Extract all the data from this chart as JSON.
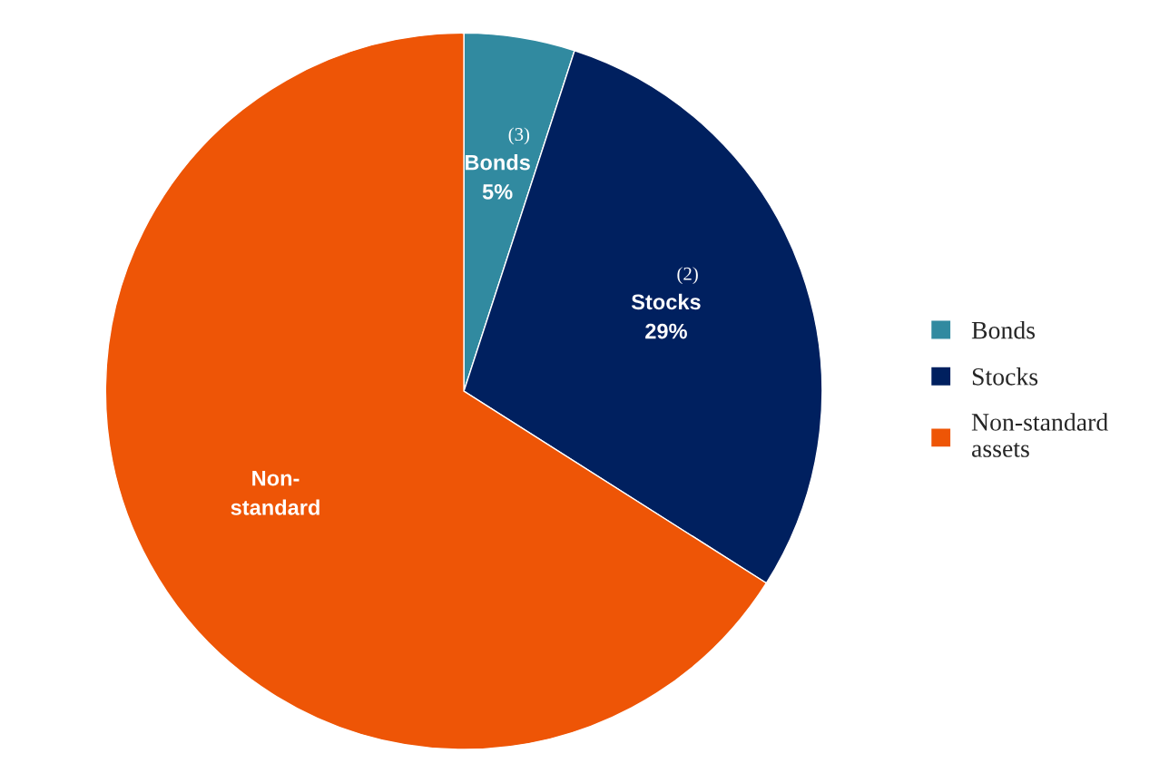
{
  "chart_data": {
    "type": "pie",
    "categories": [
      "Bonds",
      "Stocks",
      "Non-standard assets"
    ],
    "values": [
      5,
      29,
      66
    ],
    "colors": [
      "#318aa0",
      "#00205f",
      "#ee5506"
    ],
    "value_labels": [
      "Bonds\n5%",
      "Stocks\n29%",
      "Non-\nstandard"
    ],
    "annotations": [
      {
        "text": "(3)",
        "x": "Bonds"
      },
      {
        "text": "(2)",
        "x": "Stocks"
      }
    ],
    "legend": "right"
  }
}
